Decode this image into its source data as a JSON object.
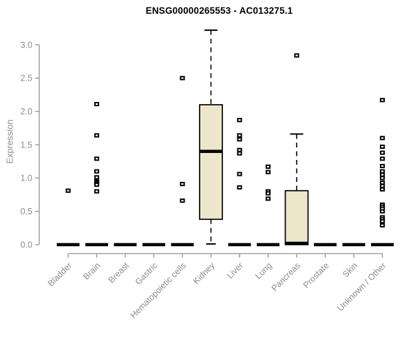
{
  "page": {
    "background": "#ffffff"
  },
  "chart_data": {
    "type": "box",
    "title": "ENSG00000265553 - AC013275.1",
    "ylabel": "Expression",
    "xlabel": "",
    "ylim": [
      0,
      3.0
    ],
    "grid": false,
    "legend": "none",
    "box_fill": "#ece7cb",
    "box_stroke": "#000000",
    "median_color": "#000000",
    "axis_color": "#919191",
    "text_color": "#8c8c8c",
    "title_color": "#000000",
    "yticks": [
      {
        "value": 0.0,
        "label": "0.0"
      },
      {
        "value": 0.5,
        "label": "0.5"
      },
      {
        "value": 1.0,
        "label": "1.0"
      },
      {
        "value": 1.5,
        "label": "1.5"
      },
      {
        "value": 2.0,
        "label": "2.0"
      },
      {
        "value": 2.5,
        "label": "2.5"
      },
      {
        "value": 3.0,
        "label": "3.0"
      }
    ],
    "categories": [
      "Bladder",
      "Brain",
      "Breast",
      "Gastric",
      "Hematopoietic cells",
      "Kidney",
      "Liver",
      "Lung",
      "Pancreas",
      "Prostate",
      "Skin",
      "Unknown / Other"
    ],
    "series": [
      {
        "category": "Bladder",
        "low": 0,
        "q1": 0,
        "median": 0,
        "q3": 0,
        "high": 0,
        "outliers": [
          0.81
        ]
      },
      {
        "category": "Brain",
        "low": 0,
        "q1": 0,
        "median": 0,
        "q3": 0,
        "high": 0,
        "outliers": [
          2.11,
          1.64,
          1.29,
          1.1,
          1.01,
          0.96,
          0.94,
          0.92,
          0.9,
          0.8
        ]
      },
      {
        "category": "Breast",
        "low": 0,
        "q1": 0,
        "median": 0,
        "q3": 0,
        "high": 0,
        "outliers": []
      },
      {
        "category": "Gastric",
        "low": 0,
        "q1": 0,
        "median": 0,
        "q3": 0,
        "high": 0,
        "outliers": []
      },
      {
        "category": "Hematopoietic cells",
        "low": 0,
        "q1": 0,
        "median": 0,
        "q3": 0,
        "high": 0,
        "outliers": [
          2.5,
          0.91,
          0.66
        ]
      },
      {
        "category": "Kidney",
        "low": 0.01,
        "q1": 0.38,
        "median": 1.4,
        "q3": 2.1,
        "high": 3.22,
        "outliers": []
      },
      {
        "category": "Liver",
        "low": 0,
        "q1": 0,
        "median": 0,
        "q3": 0,
        "high": 0,
        "outliers": [
          1.87,
          1.64,
          1.58,
          1.42,
          1.37,
          1.06,
          0.86
        ]
      },
      {
        "category": "Lung",
        "low": 0,
        "q1": 0,
        "median": 0,
        "q3": 0,
        "high": 0,
        "outliers": [
          1.17,
          1.09,
          0.8,
          0.77,
          0.69
        ]
      },
      {
        "category": "Pancreas",
        "low": 0,
        "q1": 0,
        "median": 0.02,
        "q3": 0.81,
        "high": 1.66,
        "outliers": [
          2.84
        ]
      },
      {
        "category": "Prostate",
        "low": 0,
        "q1": 0,
        "median": 0,
        "q3": 0,
        "high": 0,
        "outliers": []
      },
      {
        "category": "Skin",
        "low": 0,
        "q1": 0,
        "median": 0,
        "q3": 0,
        "high": 0,
        "outliers": []
      },
      {
        "category": "Unknown / Other",
        "low": 0,
        "q1": 0,
        "median": 0,
        "q3": 0,
        "high": 0,
        "outliers": [
          2.17,
          1.6,
          1.47,
          1.38,
          1.29,
          1.18,
          1.1,
          1.05,
          1.0,
          0.93,
          0.88,
          0.83,
          0.6,
          0.57,
          0.54,
          0.5,
          0.41,
          0.38,
          0.35,
          0.29
        ]
      }
    ]
  }
}
